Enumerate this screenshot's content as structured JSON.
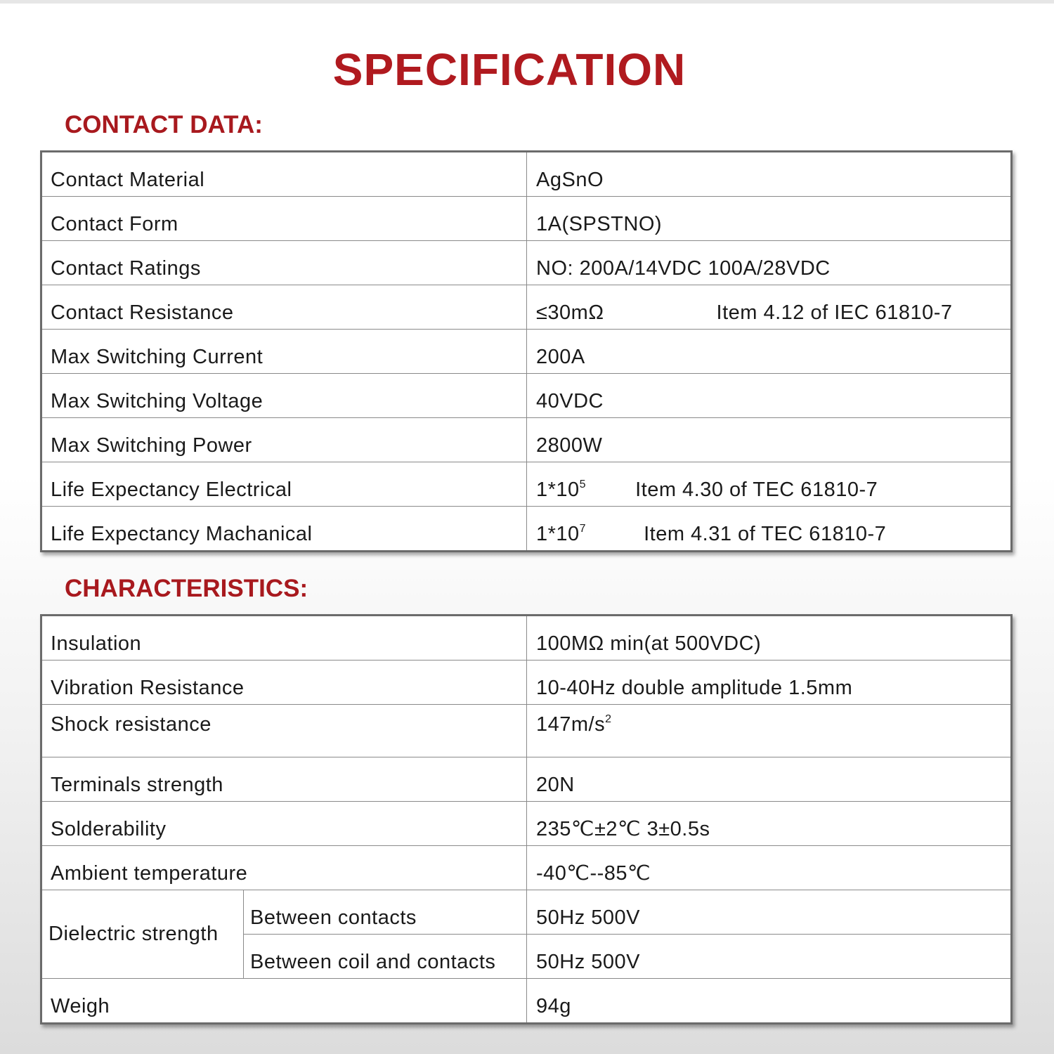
{
  "title": "SPECIFICATION",
  "contact_data": {
    "heading": "CONTACT DATA:",
    "rows": [
      {
        "label": "Contact Material",
        "value": "AgSnO"
      },
      {
        "label": "Contact Form",
        "value": "1A(SPSTNO)"
      },
      {
        "label": "Contact Ratings",
        "value": "NO: 200A/14VDC  100A/28VDC"
      },
      {
        "label": "Contact Resistance",
        "value": "≤30mΩ",
        "note": "Item 4.12 of IEC 61810-7"
      },
      {
        "label": "Max Switching Current",
        "value": "200A"
      },
      {
        "label": "Max Switching Voltage",
        "value": "40VDC"
      },
      {
        "label": "Max Switching Power",
        "value": "2800W"
      },
      {
        "label": "Life Expectancy Electrical",
        "value": "1*10",
        "sup": "5",
        "note": "Item 4.30 of TEC 61810-7"
      },
      {
        "label": "Life Expectancy Machanical",
        "value": "1*10",
        "sup": "7",
        "note": "Item 4.31 of TEC 61810-7"
      }
    ]
  },
  "characteristics": {
    "heading": "CHARACTERISTICS:",
    "rows": [
      {
        "label": "Insulation",
        "value": "100MΩ min(at 500VDC)"
      },
      {
        "label": "Vibration Resistance",
        "value": "10-40Hz double amplitude  1.5mm"
      },
      {
        "label": "Shock resistance",
        "value": "147m/s",
        "sup": "2"
      },
      {
        "label": "Terminals strength",
        "value": "20N"
      },
      {
        "label": "Solderability",
        "value": "235℃±2℃ 3±0.5s"
      },
      {
        "label": "Ambient temperature",
        "value": "-40℃--85℃"
      }
    ],
    "dielectric": {
      "label": "Dielectric strength",
      "sub": [
        {
          "label": "Between contacts",
          "value": "50Hz 500V"
        },
        {
          "label": "Between coil and contacts",
          "value": "50Hz 500V"
        }
      ]
    },
    "weigh": {
      "label": "Weigh",
      "value": "94g"
    }
  },
  "colors": {
    "accent": "#b01a1f"
  }
}
